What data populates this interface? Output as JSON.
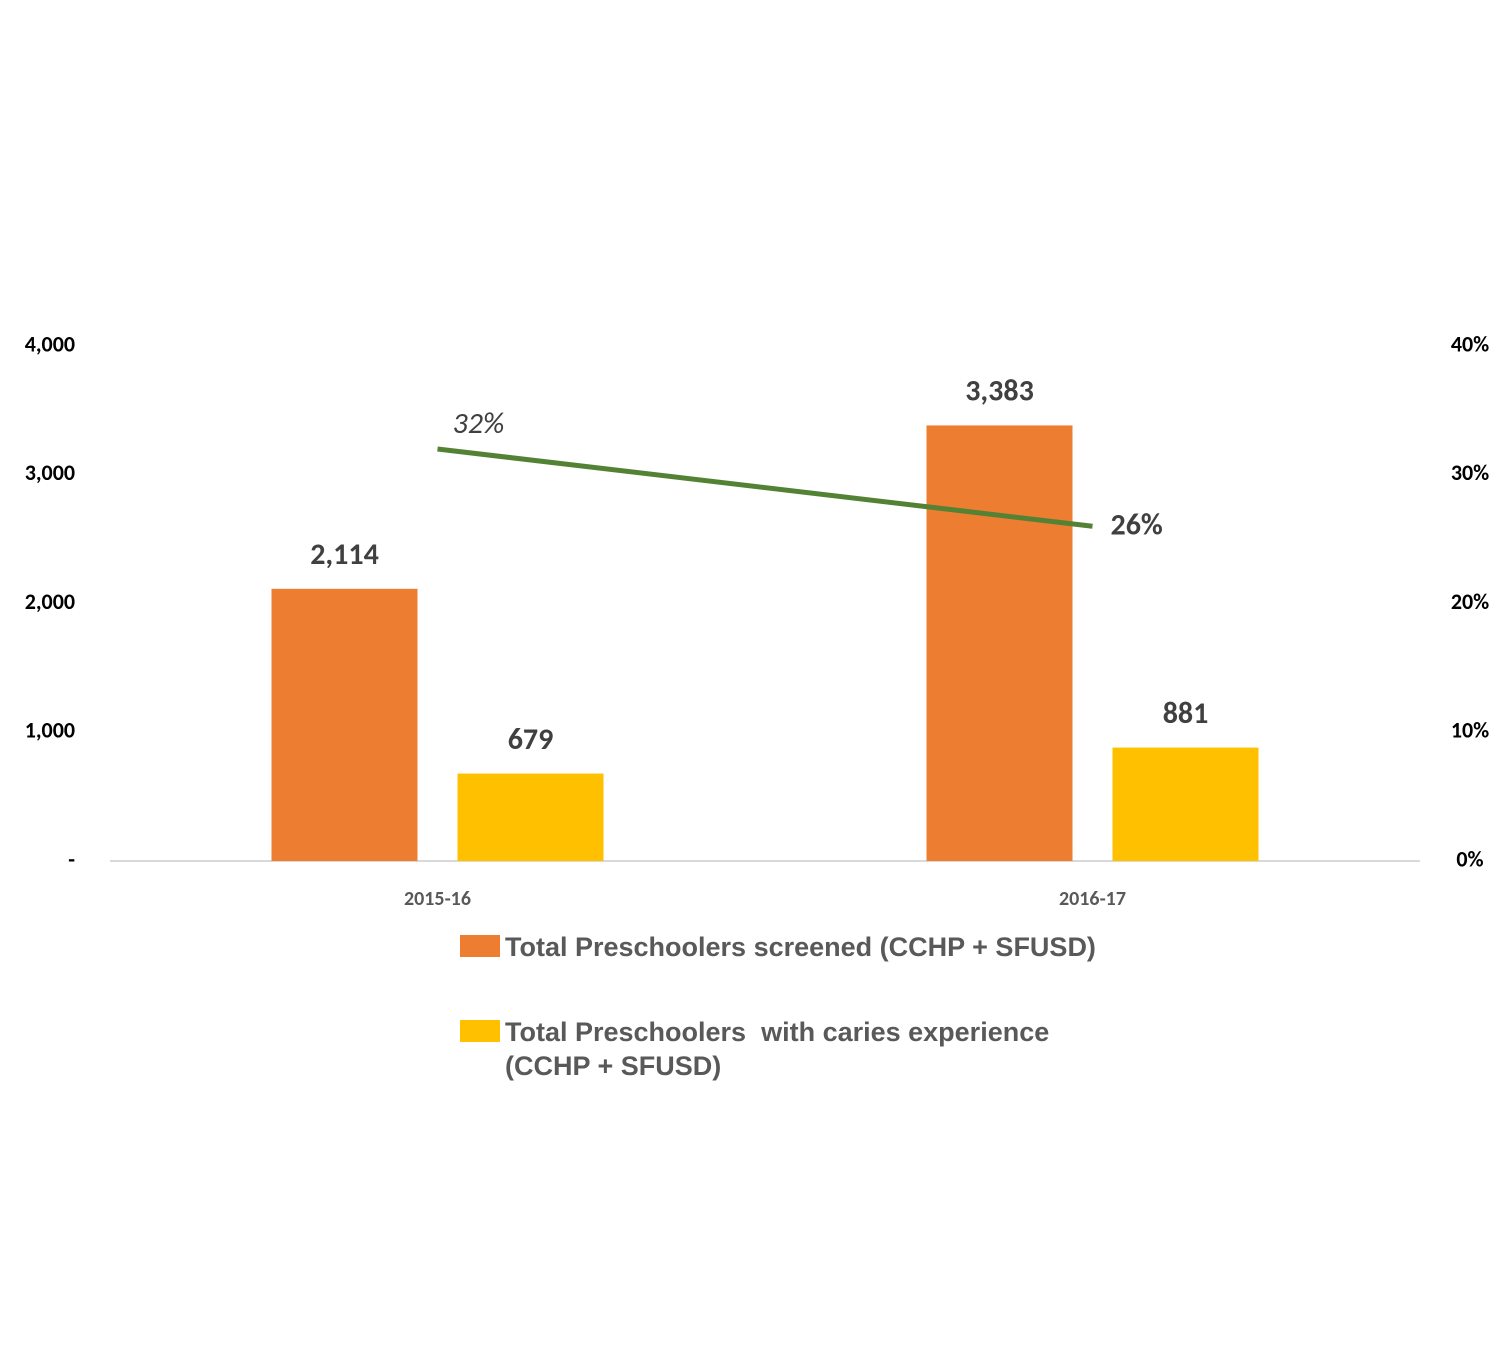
{
  "chart_data": {
    "type": "bar",
    "categories": [
      "2015-16",
      "2016-17"
    ],
    "series": [
      {
        "name": "Total Preschoolers screened (CCHP + SFUSD)",
        "color": "#ED7D31",
        "values": [
          2114,
          3383
        ],
        "value_labels": [
          "2,114",
          "3,383"
        ]
      },
      {
        "name": "Total Preschoolers  with caries experience (CCHP + SFUSD)",
        "color": "#FFC000",
        "values": [
          679,
          881
        ],
        "value_labels": [
          "679",
          "881"
        ]
      },
      {
        "type": "line",
        "axis": "y2",
        "color": "#548235",
        "values": [
          32,
          26
        ],
        "value_labels": [
          "32%",
          "26%"
        ]
      }
    ],
    "ylim": [
      0,
      4000
    ],
    "yticks": [
      {
        "value": 0,
        "label": "-"
      },
      {
        "value": 1000,
        "label": "1,000"
      },
      {
        "value": 2000,
        "label": "2,000"
      },
      {
        "value": 3000,
        "label": "3,000"
      },
      {
        "value": 4000,
        "label": "4,000"
      }
    ],
    "y2lim": [
      0,
      40
    ],
    "y2ticks": [
      {
        "value": 0,
        "label": "0%"
      },
      {
        "value": 10,
        "label": "10%"
      },
      {
        "value": 20,
        "label": "20%"
      },
      {
        "value": 30,
        "label": "30%"
      },
      {
        "value": 40,
        "label": "40%"
      }
    ],
    "grid": false
  }
}
